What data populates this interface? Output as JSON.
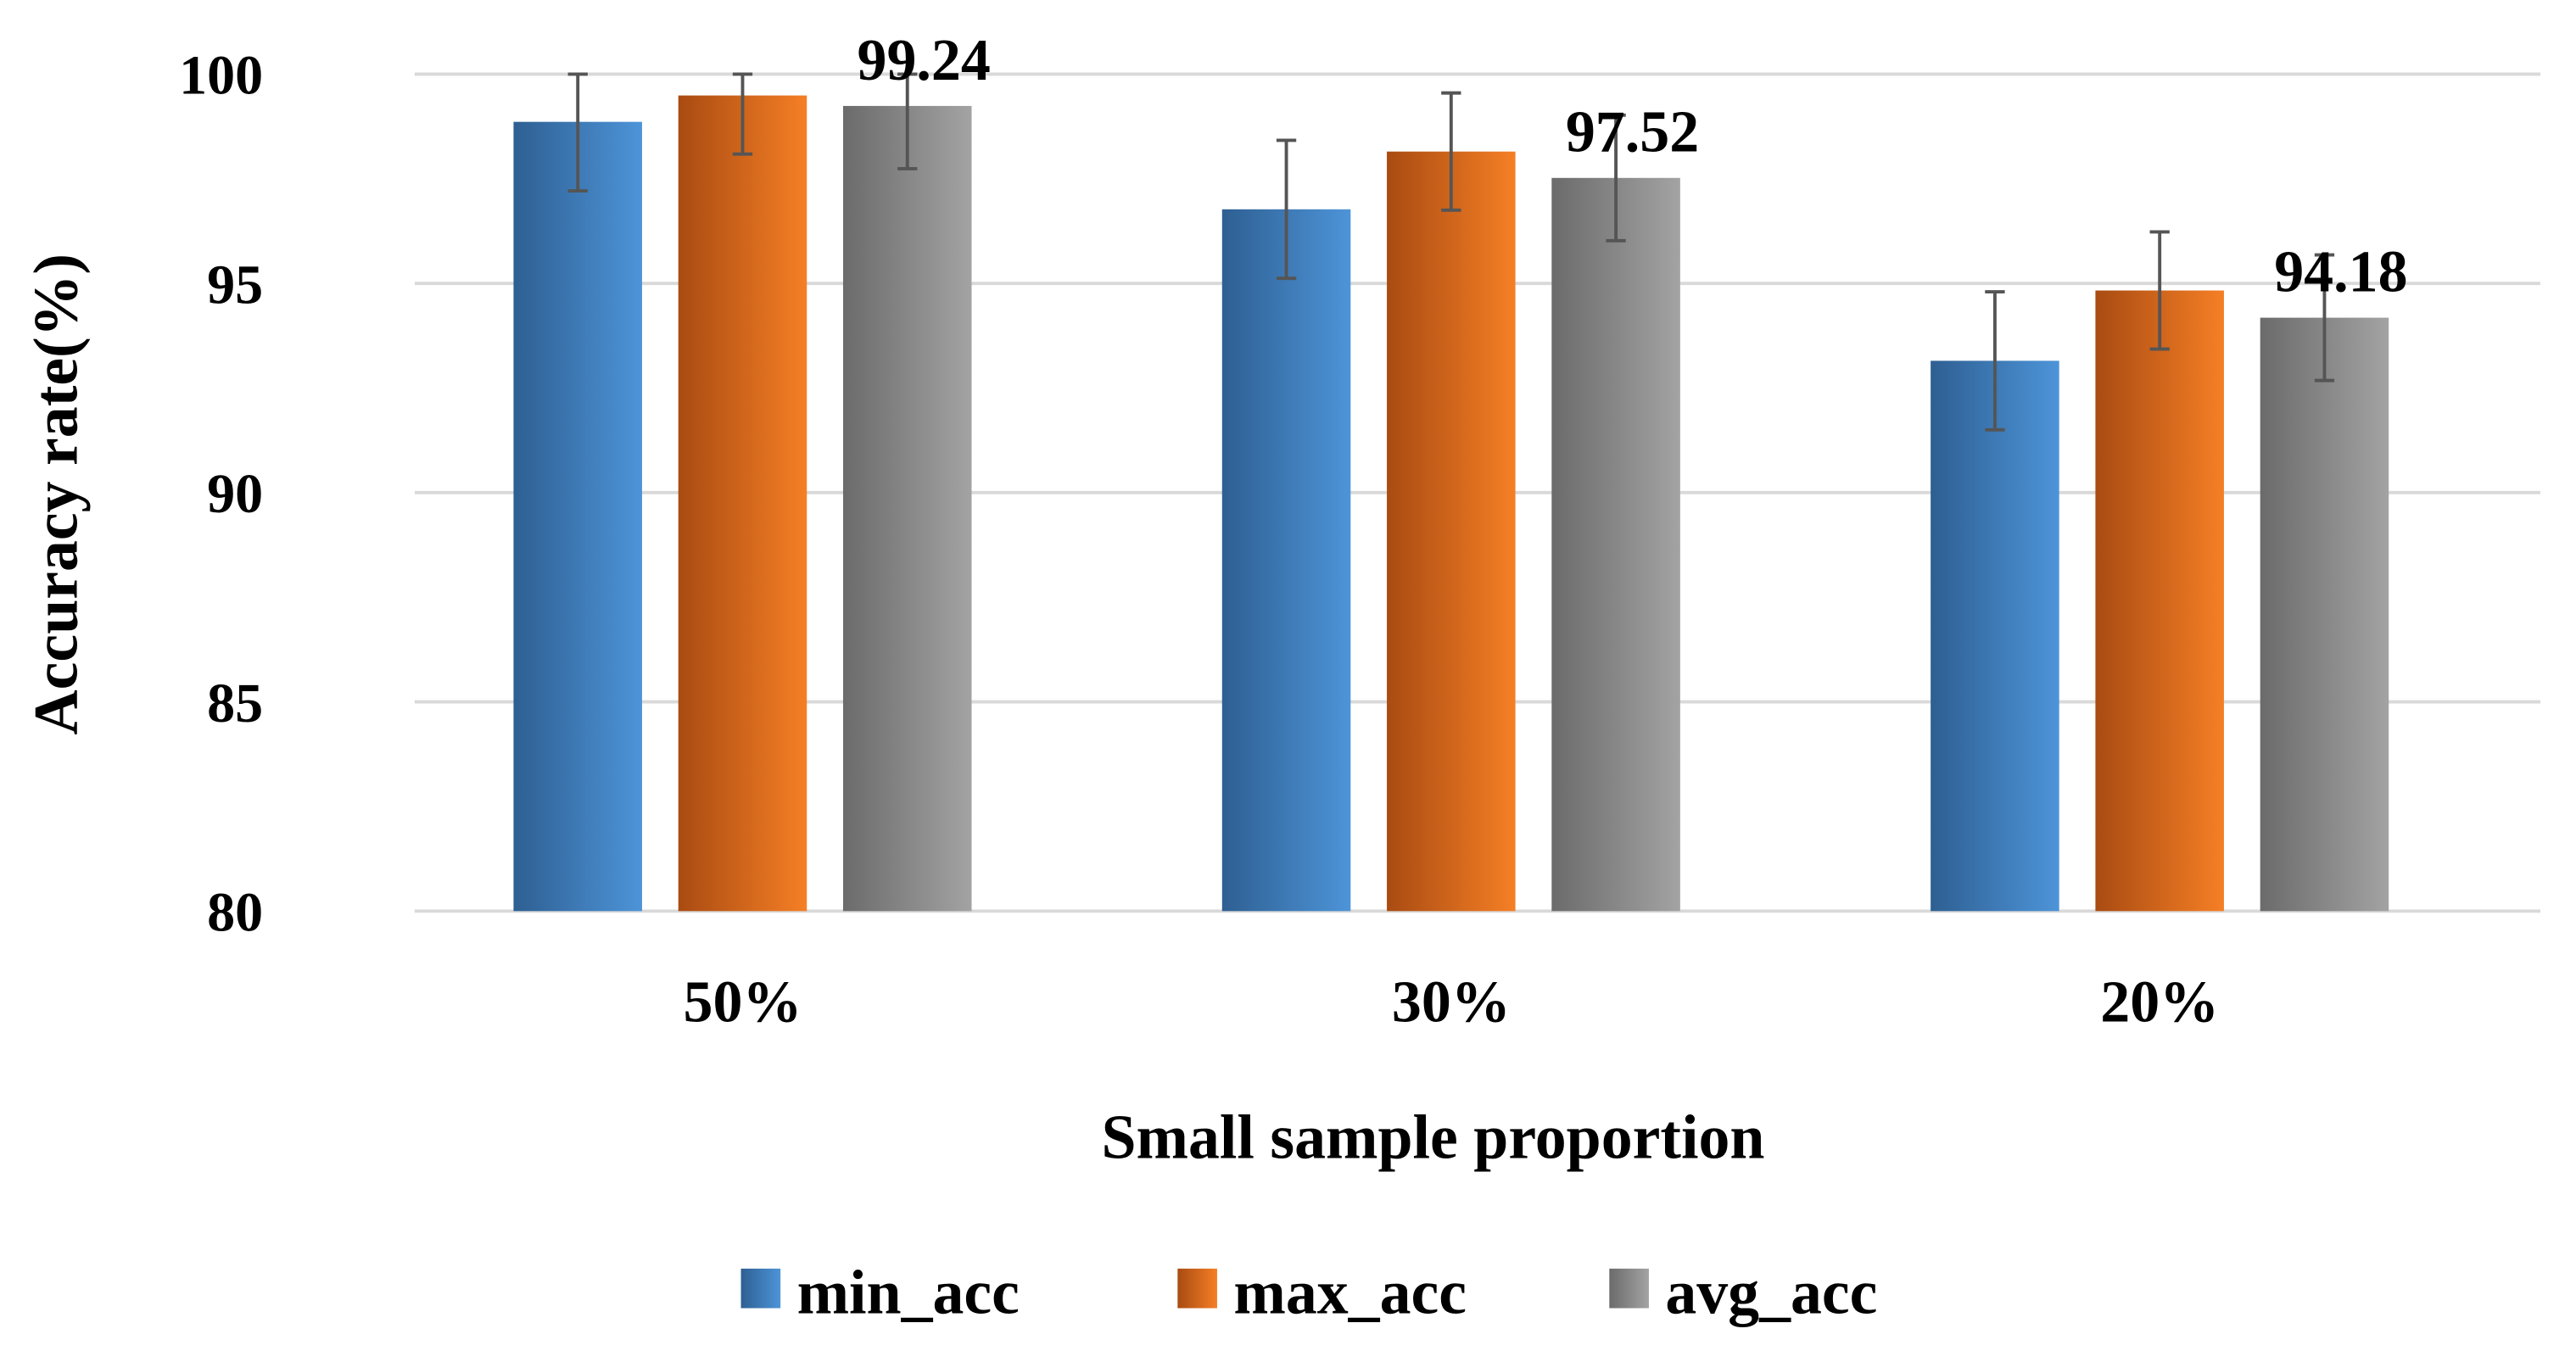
{
  "chart_data": {
    "type": "bar",
    "title": "",
    "xlabel": "Small sample proportion",
    "ylabel": "Accuracy rate(%)",
    "ylim": [
      80,
      100
    ],
    "yticks": [
      80,
      85,
      90,
      95,
      100
    ],
    "grid": true,
    "legend_position": "bottom",
    "categories": [
      "50%",
      "30%",
      "20%"
    ],
    "series": [
      {
        "name": "min_acc",
        "color": "#3f7fc0",
        "values": [
          98.86,
          96.77,
          93.15
        ],
        "errors": [
          1.65,
          1.65,
          1.65
        ]
      },
      {
        "name": "max_acc",
        "color": "#e56f1f",
        "values": [
          99.49,
          98.15,
          94.83
        ],
        "errors": [
          1.4,
          1.4,
          1.4
        ]
      },
      {
        "name": "avg_acc",
        "color": "#8c8c8c",
        "values": [
          99.24,
          97.52,
          94.18
        ],
        "errors": [
          1.5,
          1.5,
          1.5
        ]
      }
    ],
    "data_labels": {
      "series": "avg_acc",
      "labels": [
        "99.24",
        "97.52",
        "94.18"
      ]
    }
  }
}
